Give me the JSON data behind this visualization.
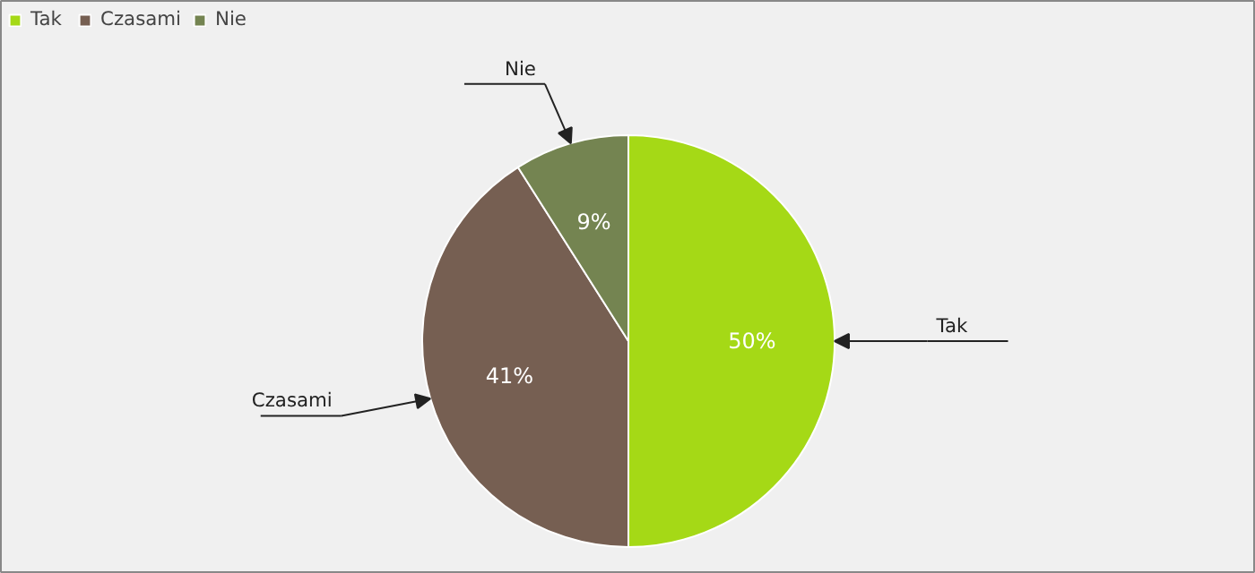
{
  "chart_data": {
    "type": "pie",
    "categories": [
      "Tak",
      "Czasami",
      "Nie"
    ],
    "values": [
      50,
      41,
      9
    ],
    "colors": [
      "#a5d916",
      "#765f52",
      "#748451"
    ],
    "value_labels": [
      "50%",
      "41%",
      "9%"
    ],
    "legend": "top left"
  }
}
